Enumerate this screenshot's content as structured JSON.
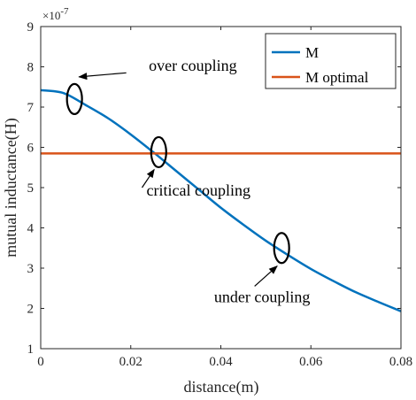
{
  "chart_data": {
    "type": "line",
    "xlabel": "distance(m)",
    "ylabel": "mutual inductance(H)",
    "y_exponent_label": "×10",
    "y_exponent_power": "-7",
    "xlim": [
      0,
      0.08
    ],
    "ylim": [
      1,
      9
    ],
    "x_ticks": [
      0,
      0.02,
      0.04,
      0.06,
      0.08
    ],
    "x_tick_labels": [
      "0",
      "0.02",
      "0.04",
      "0.06",
      "0.08"
    ],
    "y_ticks": [
      1,
      2,
      3,
      4,
      5,
      6,
      7,
      8,
      9
    ],
    "y_tick_labels": [
      "1",
      "2",
      "3",
      "4",
      "5",
      "6",
      "7",
      "8",
      "9"
    ],
    "grid": false,
    "legend_position": "top-right",
    "series": [
      {
        "name": "M",
        "color": "#0072BD",
        "x": [
          0,
          0.005,
          0.01,
          0.015,
          0.02,
          0.025,
          0.03,
          0.035,
          0.04,
          0.045,
          0.05,
          0.055,
          0.06,
          0.065,
          0.07,
          0.075,
          0.08
        ],
        "y": [
          7.42,
          7.35,
          7.05,
          6.72,
          6.32,
          5.88,
          5.42,
          4.96,
          4.5,
          4.08,
          3.68,
          3.32,
          2.98,
          2.68,
          2.4,
          2.16,
          1.93
        ]
      },
      {
        "name": "M optimal",
        "color": "#D95319",
        "x": [
          0,
          0.08
        ],
        "y": [
          5.85,
          5.85
        ]
      }
    ],
    "annotations": [
      {
        "text": "over coupling",
        "ellipse_at": [
          0.0075,
          7.2
        ],
        "text_at": [
          0.024,
          7.9
        ],
        "arrow_from": [
          0.019,
          7.85
        ],
        "arrow_to": [
          0.0085,
          7.75
        ]
      },
      {
        "text": "critical coupling",
        "ellipse_at": [
          0.0262,
          5.88
        ],
        "text_at": [
          0.0235,
          4.8
        ],
        "arrow_from": [
          0.0225,
          5.0
        ],
        "arrow_to": [
          0.0252,
          5.45
        ]
      },
      {
        "text": "under coupling",
        "ellipse_at": [
          0.0535,
          3.5
        ],
        "text_at": [
          0.0385,
          2.15
        ],
        "arrow_from": [
          0.0475,
          2.55
        ],
        "arrow_to": [
          0.0525,
          3.05
        ]
      }
    ]
  }
}
